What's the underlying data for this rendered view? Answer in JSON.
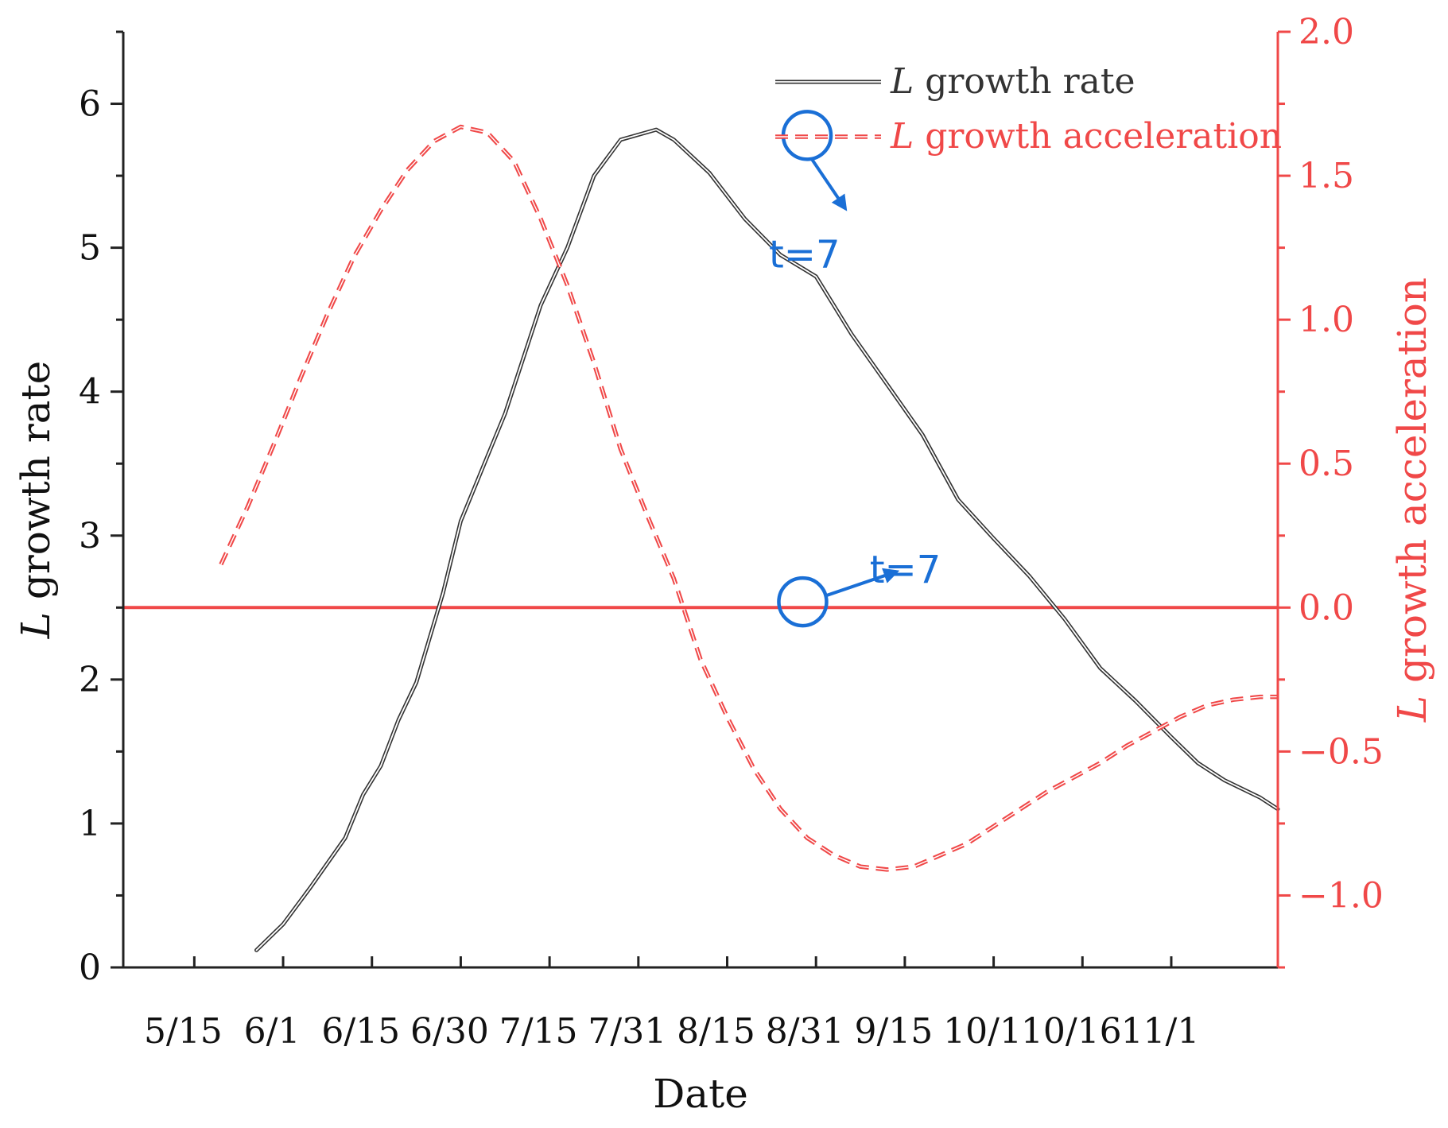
{
  "chart_data": {
    "type": "line",
    "xlabel": "Date",
    "ylabel_left_prefix": "L",
    "ylabel_left_rest": " growth rate",
    "ylabel_right_prefix": "L",
    "ylabel_right_rest": " growth acceleration",
    "x_tick_labels": [
      "5/15",
      "6/1",
      "6/15",
      "6/30",
      "7/15",
      "7/31",
      "8/15",
      "8/31",
      "9/15",
      "10/1",
      "10/16",
      "11/1"
    ],
    "x_range": [
      -0.8,
      12.2
    ],
    "y_left_ticks": [
      "0",
      "1",
      "2",
      "3",
      "4",
      "5",
      "6"
    ],
    "y_left_range": [
      0,
      6.5
    ],
    "y_right_ticks": [
      "2.0",
      "1.5",
      "1.0",
      "0.5",
      "0.0",
      "−0.5",
      "−1.0"
    ],
    "y_right_tick_values": [
      2.0,
      1.5,
      1.0,
      0.5,
      0.0,
      -0.5,
      -1.0
    ],
    "y_right_range": [
      -1.25,
      2.0
    ],
    "colors": {
      "rate": "#333333",
      "acceleration": "#f04848",
      "annotation": "#1a6fd6"
    },
    "series": [
      {
        "name_prefix": "L",
        "name_rest": " growth rate",
        "axis": "left",
        "style": "double-line",
        "x": [
          0.7,
          1.0,
          1.3,
          1.7,
          1.9,
          2.1,
          2.3,
          2.5,
          2.8,
          3.0,
          3.3,
          3.5,
          3.9,
          4.2,
          4.5,
          4.8,
          5.2,
          5.4,
          5.8,
          6.2,
          6.6,
          7.0,
          7.4,
          7.8,
          8.2,
          8.6,
          9.0,
          9.4,
          9.8,
          10.2,
          10.6,
          11.0,
          11.3,
          11.6,
          12.0,
          12.2
        ],
        "y": [
          0.12,
          0.3,
          0.55,
          0.9,
          1.2,
          1.4,
          1.72,
          1.98,
          2.6,
          3.1,
          3.55,
          3.85,
          4.6,
          5.0,
          5.5,
          5.75,
          5.82,
          5.75,
          5.52,
          5.2,
          4.95,
          4.8,
          4.4,
          4.05,
          3.7,
          3.25,
          2.98,
          2.72,
          2.42,
          2.08,
          1.85,
          1.6,
          1.42,
          1.3,
          1.18,
          1.1
        ]
      },
      {
        "name_prefix": "L",
        "name_rest": " growth acceleration",
        "axis": "right",
        "style": "dashed",
        "x": [
          0.3,
          0.6,
          0.9,
          1.2,
          1.5,
          1.8,
          2.1,
          2.4,
          2.7,
          3.0,
          3.3,
          3.6,
          3.9,
          4.2,
          4.5,
          4.8,
          5.1,
          5.4,
          5.7,
          6.0,
          6.3,
          6.6,
          6.9,
          7.2,
          7.5,
          7.8,
          8.1,
          8.4,
          8.7,
          9.0,
          9.3,
          9.6,
          9.9,
          10.2,
          10.5,
          10.8,
          11.1,
          11.4,
          11.7,
          12.0,
          12.2
        ],
        "y": [
          0.15,
          0.35,
          0.57,
          0.8,
          1.02,
          1.22,
          1.38,
          1.52,
          1.62,
          1.67,
          1.65,
          1.55,
          1.35,
          1.12,
          0.85,
          0.55,
          0.32,
          0.1,
          -0.18,
          -0.38,
          -0.56,
          -0.7,
          -0.8,
          -0.86,
          -0.9,
          -0.91,
          -0.9,
          -0.86,
          -0.82,
          -0.76,
          -0.7,
          -0.64,
          -0.59,
          -0.54,
          -0.48,
          -0.43,
          -0.38,
          -0.34,
          -0.32,
          -0.31,
          -0.31
        ]
      }
    ],
    "reference_line": {
      "axis": "right",
      "y": 0.0
    },
    "annotations": [
      {
        "text": "t=7",
        "circle_x": 6.9,
        "circle_y": 5.78,
        "circle_axis": "left",
        "label_x": 7.05,
        "label_y": 4.95
      },
      {
        "text": "t=7",
        "circle_x": 6.85,
        "circle_y": 0.02,
        "circle_axis": "right",
        "label_x": 8.05,
        "label_y": 0.13
      }
    ],
    "legend_position": "top-right"
  }
}
